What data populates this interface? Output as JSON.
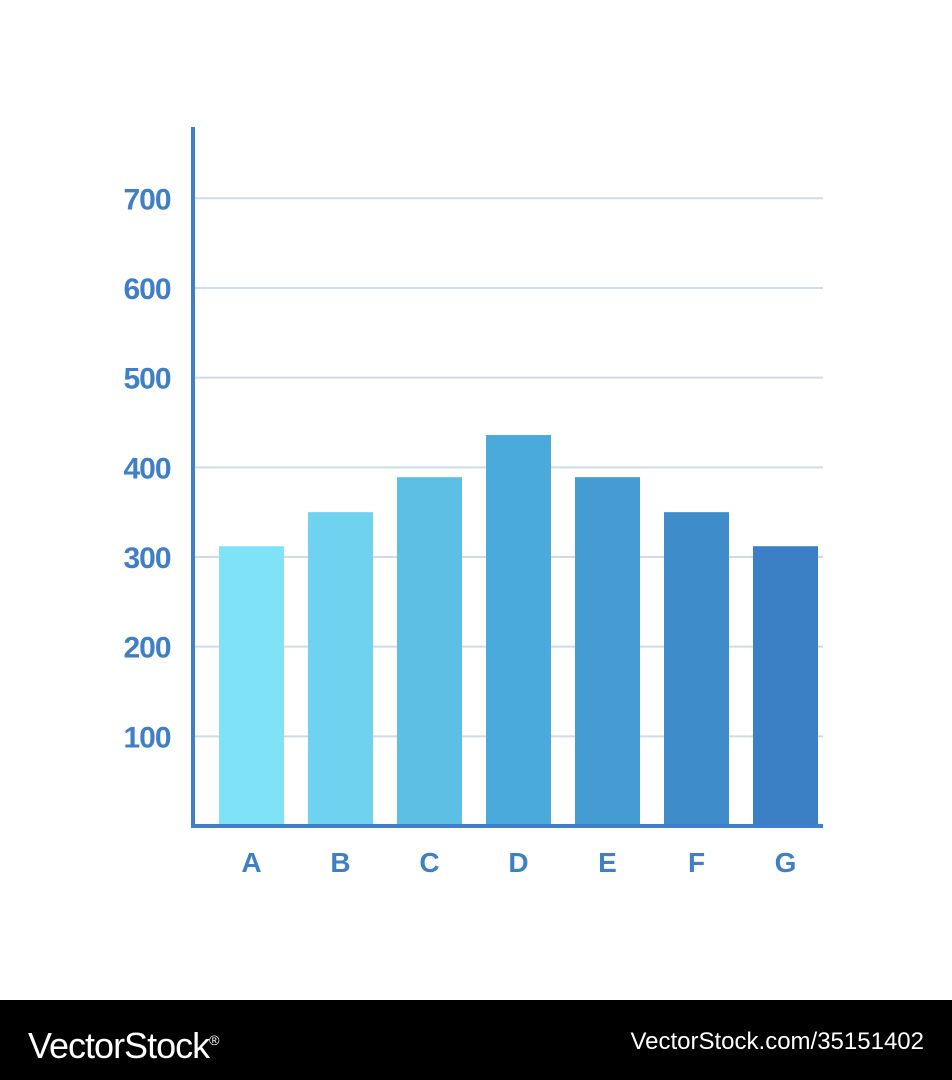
{
  "chart_data": {
    "type": "bar",
    "title": "",
    "xlabel": "",
    "ylabel": "",
    "categories": [
      "A",
      "B",
      "C",
      "D",
      "E",
      "F",
      "G"
    ],
    "values": [
      312,
      350,
      389,
      436,
      389,
      350,
      312
    ],
    "yticks": [
      100,
      200,
      300,
      400,
      500,
      600,
      700
    ],
    "ylim": [
      0,
      780
    ],
    "grid": true,
    "bar_colors": [
      "#80e2f7",
      "#6fd3ef",
      "#5cbfe4",
      "#4aaadc",
      "#449cd2",
      "#3f8ccb",
      "#3b7fc4"
    ],
    "axis_color": "#3f7fc6",
    "gridline_color": "#cfdbe6",
    "label_color": "#3f7fc6"
  },
  "footer": {
    "brand": "VectorStock",
    "brand_mark": "®",
    "image_id": "VectorStock.com/35151402"
  }
}
